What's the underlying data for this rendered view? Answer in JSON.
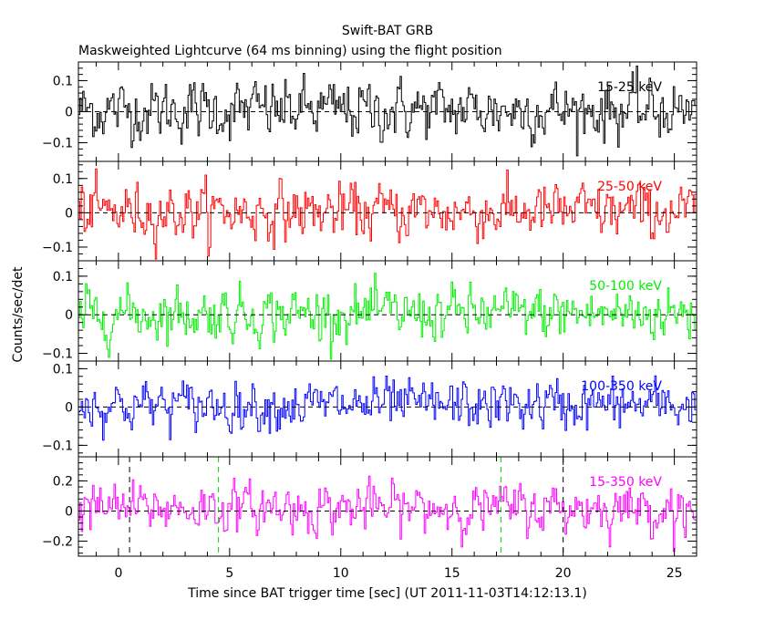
{
  "title": "Swift-BAT GRB",
  "subtitle": "Maskweighted Lightcurve (64 ms binning) using the flight position",
  "chart_data": {
    "type": "line",
    "title": "Swift-BAT GRB",
    "subtitle": "Maskweighted Lightcurve (64 ms binning) using the flight position",
    "xlabel": "Time since BAT trigger time [sec] (UT 2011-11-03T14:12:13.1)",
    "ylabel": "Counts/sec/det",
    "xlim": [
      -1.8,
      26
    ],
    "x_ticks": [
      0,
      5,
      10,
      15,
      20,
      25
    ],
    "x_tick_labels": [
      "0",
      "5",
      "10",
      "15",
      "20",
      "25"
    ],
    "bin_seconds": 0.064,
    "grid": false,
    "panels": [
      {
        "name": "15-25 keV",
        "color": "#000000",
        "ylim": [
          -0.16,
          0.16
        ],
        "y_ticks": [
          -0.1,
          0,
          0.1
        ],
        "y_tick_labels": [
          "−0.1",
          "0",
          "0.1"
        ],
        "noise_sigma": 0.045,
        "mean": 0.005,
        "vlines": []
      },
      {
        "name": "25-50 keV",
        "color": "#ff0000",
        "ylim": [
          -0.14,
          0.15
        ],
        "y_ticks": [
          -0.1,
          0,
          0.1
        ],
        "y_tick_labels": [
          "−0.1",
          "0",
          "0.1"
        ],
        "noise_sigma": 0.038,
        "mean": 0.003,
        "vlines": []
      },
      {
        "name": "50-100 keV",
        "color": "#00ee00",
        "ylim": [
          -0.12,
          0.14
        ],
        "y_ticks": [
          -0.1,
          0,
          0.1
        ],
        "y_tick_labels": [
          "−0.1",
          "0",
          "0.1"
        ],
        "noise_sigma": 0.032,
        "mean": 0.003,
        "vlines": []
      },
      {
        "name": "100-350 keV",
        "color": "#0000ff",
        "ylim": [
          -0.13,
          0.12
        ],
        "y_ticks": [
          -0.1,
          0,
          0.1
        ],
        "y_tick_labels": [
          "−0.1",
          "0",
          "0.1"
        ],
        "noise_sigma": 0.03,
        "mean": 0.005,
        "vlines": []
      },
      {
        "name": "15-350 keV",
        "color": "#ff00ff",
        "ylim": [
          -0.3,
          0.36
        ],
        "y_ticks": [
          -0.2,
          0,
          0.2
        ],
        "y_tick_labels": [
          "−0.2",
          "0",
          "0.2"
        ],
        "noise_sigma": 0.075,
        "mean": 0.02,
        "vlines": [
          {
            "x": 0.5,
            "color": "#000000"
          },
          {
            "x": 4.5,
            "color": "#00cc00"
          },
          {
            "x": 17.2,
            "color": "#00cc00"
          },
          {
            "x": 20.0,
            "color": "#000000"
          }
        ]
      }
    ]
  }
}
